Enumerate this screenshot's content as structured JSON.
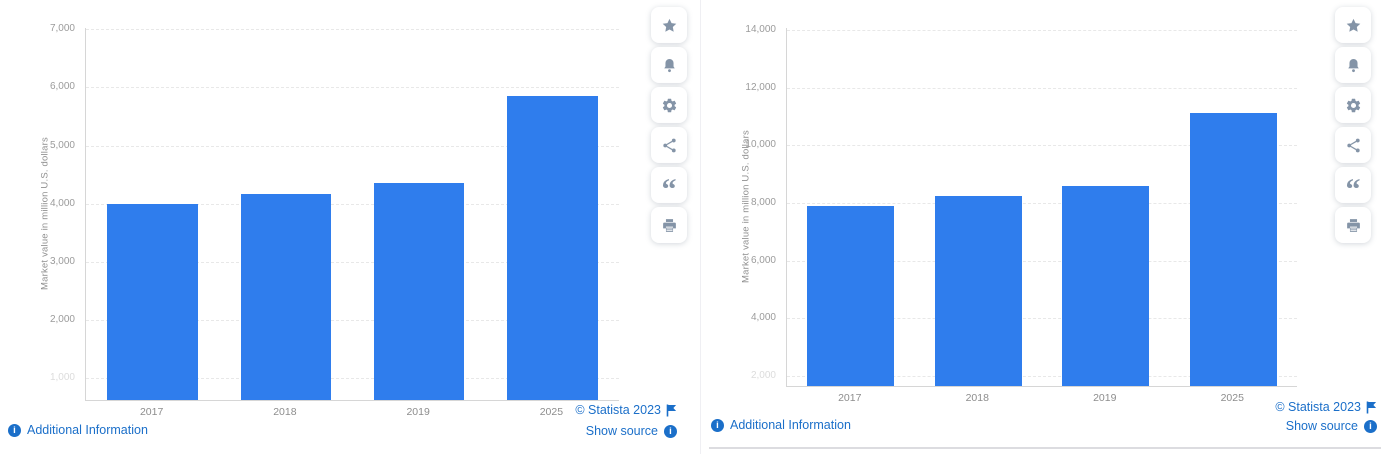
{
  "colors": {
    "bar": "#2f7ded",
    "link_blue": "#1b6fc9",
    "tick_text": "#9b9b9b",
    "faded_tick_text": "#dcdcdc",
    "axis_line": "#d6d6d6",
    "gridline": "#e8e8e8",
    "toolbar_icon": "#8494a7"
  },
  "chart_data": [
    {
      "type": "bar",
      "title": "",
      "categories": [
        "2017",
        "2018",
        "2019",
        "2025"
      ],
      "values": [
        3990,
        4170,
        4350,
        5850
      ],
      "xlabel": "",
      "ylabel": "Market value in million U.S. dollars",
      "yticks": [
        1000,
        2000,
        3000,
        4000,
        5000,
        6000,
        7000
      ],
      "ylim": [
        628,
        7022
      ],
      "grid": "dashed-horizontal",
      "legend": false,
      "bar_color": "#2f7ded"
    },
    {
      "type": "bar",
      "title": "",
      "categories": [
        "2017",
        "2018",
        "2019",
        "2025"
      ],
      "values": [
        7910,
        8250,
        8600,
        11120
      ],
      "xlabel": "",
      "ylabel": "Market value in million U.S. dollars",
      "yticks": [
        2000,
        4000,
        6000,
        8000,
        10000,
        12000,
        14000
      ],
      "ylim": [
        1649,
        14080
      ],
      "grid": "dashed-horizontal",
      "legend": false,
      "bar_color": "#2f7ded"
    }
  ],
  "panels": [
    {
      "footer": {
        "additional_info": "Additional Information",
        "credit": "© Statista 2023",
        "show_source": "Show source"
      },
      "toolbar": [
        {
          "name": "favorite",
          "icon": "star"
        },
        {
          "name": "notifications",
          "icon": "bell"
        },
        {
          "name": "settings",
          "icon": "gear"
        },
        {
          "name": "share",
          "icon": "share"
        },
        {
          "name": "cite",
          "icon": "quote"
        },
        {
          "name": "print",
          "icon": "printer"
        }
      ]
    },
    {
      "footer": {
        "additional_info": "Additional Information",
        "credit": "© Statista 2023",
        "show_source": "Show source"
      },
      "toolbar": [
        {
          "name": "favorite",
          "icon": "star"
        },
        {
          "name": "notifications",
          "icon": "bell"
        },
        {
          "name": "settings",
          "icon": "gear"
        },
        {
          "name": "share",
          "icon": "share"
        },
        {
          "name": "cite",
          "icon": "quote"
        },
        {
          "name": "print",
          "icon": "printer"
        }
      ]
    }
  ]
}
